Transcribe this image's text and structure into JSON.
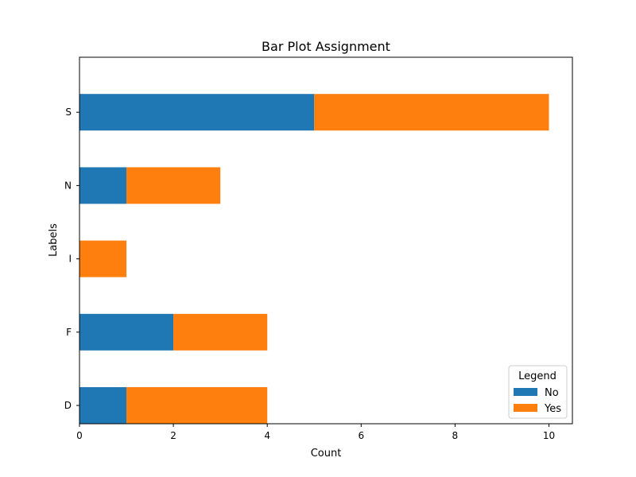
{
  "chart_data": {
    "type": "bar",
    "orientation": "horizontal",
    "stacked": true,
    "title": "Bar Plot Assignment",
    "xlabel": "Count",
    "ylabel": "Labels",
    "categories": [
      "D",
      "F",
      "I",
      "N",
      "S"
    ],
    "series": [
      {
        "name": "No",
        "values": [
          1,
          2,
          0,
          1,
          5
        ],
        "color": "#1f77b4"
      },
      {
        "name": "Yes",
        "values": [
          3,
          2,
          1,
          2,
          5
        ],
        "color": "#ff7f0e"
      }
    ],
    "xlim": [
      0,
      10.5
    ],
    "xticks": [
      0,
      2,
      4,
      6,
      8,
      10
    ],
    "grid": false,
    "legend": {
      "title": "Legend",
      "placement": "lower-right"
    }
  }
}
